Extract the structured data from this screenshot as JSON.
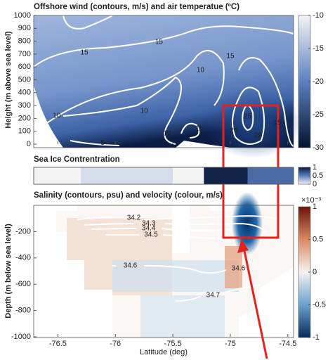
{
  "chart_data": [
    {
      "type": "heatmap",
      "title": "Offshore wind (contours, m/s) and air temperatue (ºC)",
      "ylabel": "Height (m above sea level)",
      "xlim": [
        -76.71,
        -74.45
      ],
      "xticks": [
        -76.5,
        -76,
        -75.5,
        -75,
        -74.5
      ],
      "ylim": [
        0,
        1000
      ],
      "yticks": [
        0,
        100,
        200,
        300,
        400,
        500,
        600,
        700,
        800,
        900,
        1000
      ],
      "colorbar": {
        "clim": [
          -30,
          -10
        ],
        "ticks": [
          -10,
          -15,
          -20,
          -25,
          -30
        ]
      },
      "contour_labels": [
        {
          "value": 15,
          "x": -76.27,
          "y": 710
        },
        {
          "value": 15,
          "x": -75.62,
          "y": 792
        },
        {
          "value": 10,
          "x": -75.26,
          "y": 574
        },
        {
          "value": 15,
          "x": -75.0,
          "y": 683
        },
        {
          "value": 10,
          "x": -75.75,
          "y": 257
        },
        {
          "value": 10,
          "x": -76.51,
          "y": 219
        },
        {
          "value": 10,
          "x": -75.55,
          "y": 82
        },
        {
          "value": 15,
          "x": -75.27,
          "y": 120
        },
        {
          "value": 25,
          "x": -74.85,
          "y": 213
        },
        {
          "value": 20,
          "x": -74.97,
          "y": 104
        },
        {
          "value": 20,
          "x": -74.76,
          "y": 66
        },
        {
          "value": 15,
          "x": -74.59,
          "y": 164
        },
        {
          "value": 5,
          "x": -76.11,
          "y": 10
        }
      ]
    },
    {
      "type": "strip",
      "title": "Sea Ice Contrentration",
      "xlim": [
        -76.71,
        -74.45
      ],
      "bins": [
        -76.71,
        -76.3,
        -75.5,
        -75.23,
        -74.85,
        -74.45
      ],
      "values": [
        0,
        0.1,
        0,
        0.95,
        0.6
      ],
      "colorbar": {
        "clim": [
          0,
          1
        ],
        "ticks": [
          1,
          0.5,
          0
        ]
      }
    },
    {
      "type": "heatmap",
      "title": "Salinity (contours, psu) and velocity (colour, m/s)",
      "ylabel": "Depth (m below sea level)",
      "xlabel": "Latitude (deg)",
      "xlim": [
        -76.71,
        -74.45
      ],
      "xticks": [
        -76.5,
        -76,
        -75.5,
        -75,
        -74.5
      ],
      "ylim": [
        -1000,
        0
      ],
      "yticks": [
        -1000,
        -800,
        -600,
        -400,
        -200
      ],
      "colorbar": {
        "clim": [
          -1,
          1
        ],
        "ticks": [
          1,
          0.5,
          0,
          -0.5,
          -1
        ],
        "scale_label": "×10⁻³"
      },
      "contour_labels": [
        {
          "value": 34.2,
          "x": -75.84,
          "y": -96
        },
        {
          "value": 34.3,
          "x": -75.71,
          "y": -139
        },
        {
          "value": 34.4,
          "x": -75.71,
          "y": -176
        },
        {
          "value": 34.5,
          "x": -75.69,
          "y": -225
        },
        {
          "value": 34.6,
          "x": -75.87,
          "y": -460
        },
        {
          "value": 34.6,
          "x": -74.93,
          "y": -481
        },
        {
          "value": 34.7,
          "x": -75.15,
          "y": -684
        }
      ]
    }
  ]
}
